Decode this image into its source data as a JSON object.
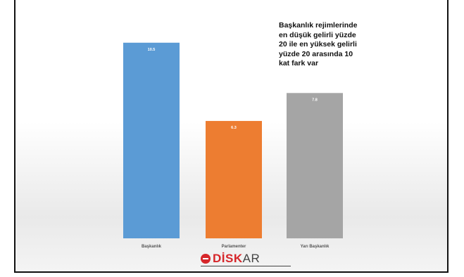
{
  "annotation": {
    "lines": [
      "Başkanlık rejimlerinde",
      "en düşük gelirli yüzde",
      "20 ile en yüksek gelirli",
      "yüzde 20 arasında 10",
      "kat fark var"
    ]
  },
  "chart_data": {
    "type": "bar",
    "categories": [
      "Başkanlık",
      "Parlamenter",
      "Yarı Başkanlık"
    ],
    "values": [
      10.5,
      6.3,
      7.8
    ],
    "value_labels": [
      "10.5",
      "6.3",
      "7.8"
    ],
    "colors": [
      "#5b9bd5",
      "#ed7d31",
      "#a5a5a5"
    ],
    "ylim": [
      0,
      12
    ],
    "grid": false,
    "legend": "none"
  },
  "logo": {
    "strong": "DİSK",
    "light": "AR"
  }
}
